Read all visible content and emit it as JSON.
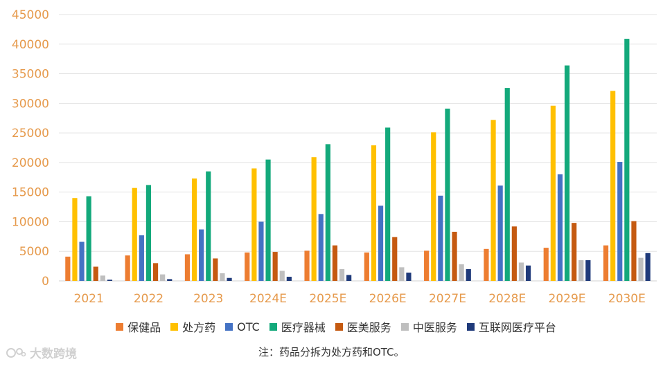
{
  "chart_data": {
    "type": "bar",
    "title": "",
    "xlabel": "",
    "ylabel": "",
    "ylim": [
      0,
      45000
    ],
    "yticks": [
      0,
      5000,
      10000,
      15000,
      20000,
      25000,
      30000,
      35000,
      40000,
      45000
    ],
    "grid": true,
    "legend_position": "bottom",
    "categories": [
      "2021",
      "2022",
      "2023",
      "2024E",
      "2025E",
      "2026E",
      "2027E",
      "2028E",
      "2029E",
      "2030E"
    ],
    "series": [
      {
        "name": "保健品",
        "color": "#ED7D31",
        "values": [
          4100,
          4300,
          4500,
          4800,
          5100,
          4800,
          5100,
          5400,
          5600,
          6000
        ]
      },
      {
        "name": "处方药",
        "color": "#FFC000",
        "values": [
          14000,
          15700,
          17300,
          19000,
          20900,
          22900,
          25100,
          27200,
          29600,
          32100
        ]
      },
      {
        "name": "OTC",
        "color": "#4472C4",
        "values": [
          6600,
          7700,
          8700,
          10000,
          11300,
          12700,
          14400,
          16100,
          18000,
          20100
        ]
      },
      {
        "name": "医疗器械",
        "color": "#13A97B",
        "values": [
          14300,
          16200,
          18500,
          20500,
          23100,
          25900,
          29100,
          32600,
          36400,
          40900
        ]
      },
      {
        "name": "医美服务",
        "color": "#C55A11",
        "values": [
          2400,
          3000,
          3800,
          4900,
          6000,
          7400,
          8300,
          9200,
          9800,
          10100
        ]
      },
      {
        "name": "中医服务",
        "color": "#BFBFBF",
        "values": [
          900,
          1100,
          1300,
          1700,
          2000,
          2300,
          2800,
          3100,
          3500,
          3900
        ]
      },
      {
        "name": "互联网医疗平台",
        "color": "#1F3A7A",
        "values": [
          200,
          300,
          500,
          700,
          1000,
          1400,
          2000,
          2600,
          3500,
          4700
        ]
      }
    ]
  },
  "footnote": "注：药品分拆为处方药和OTC。",
  "watermark": "大数跨境"
}
